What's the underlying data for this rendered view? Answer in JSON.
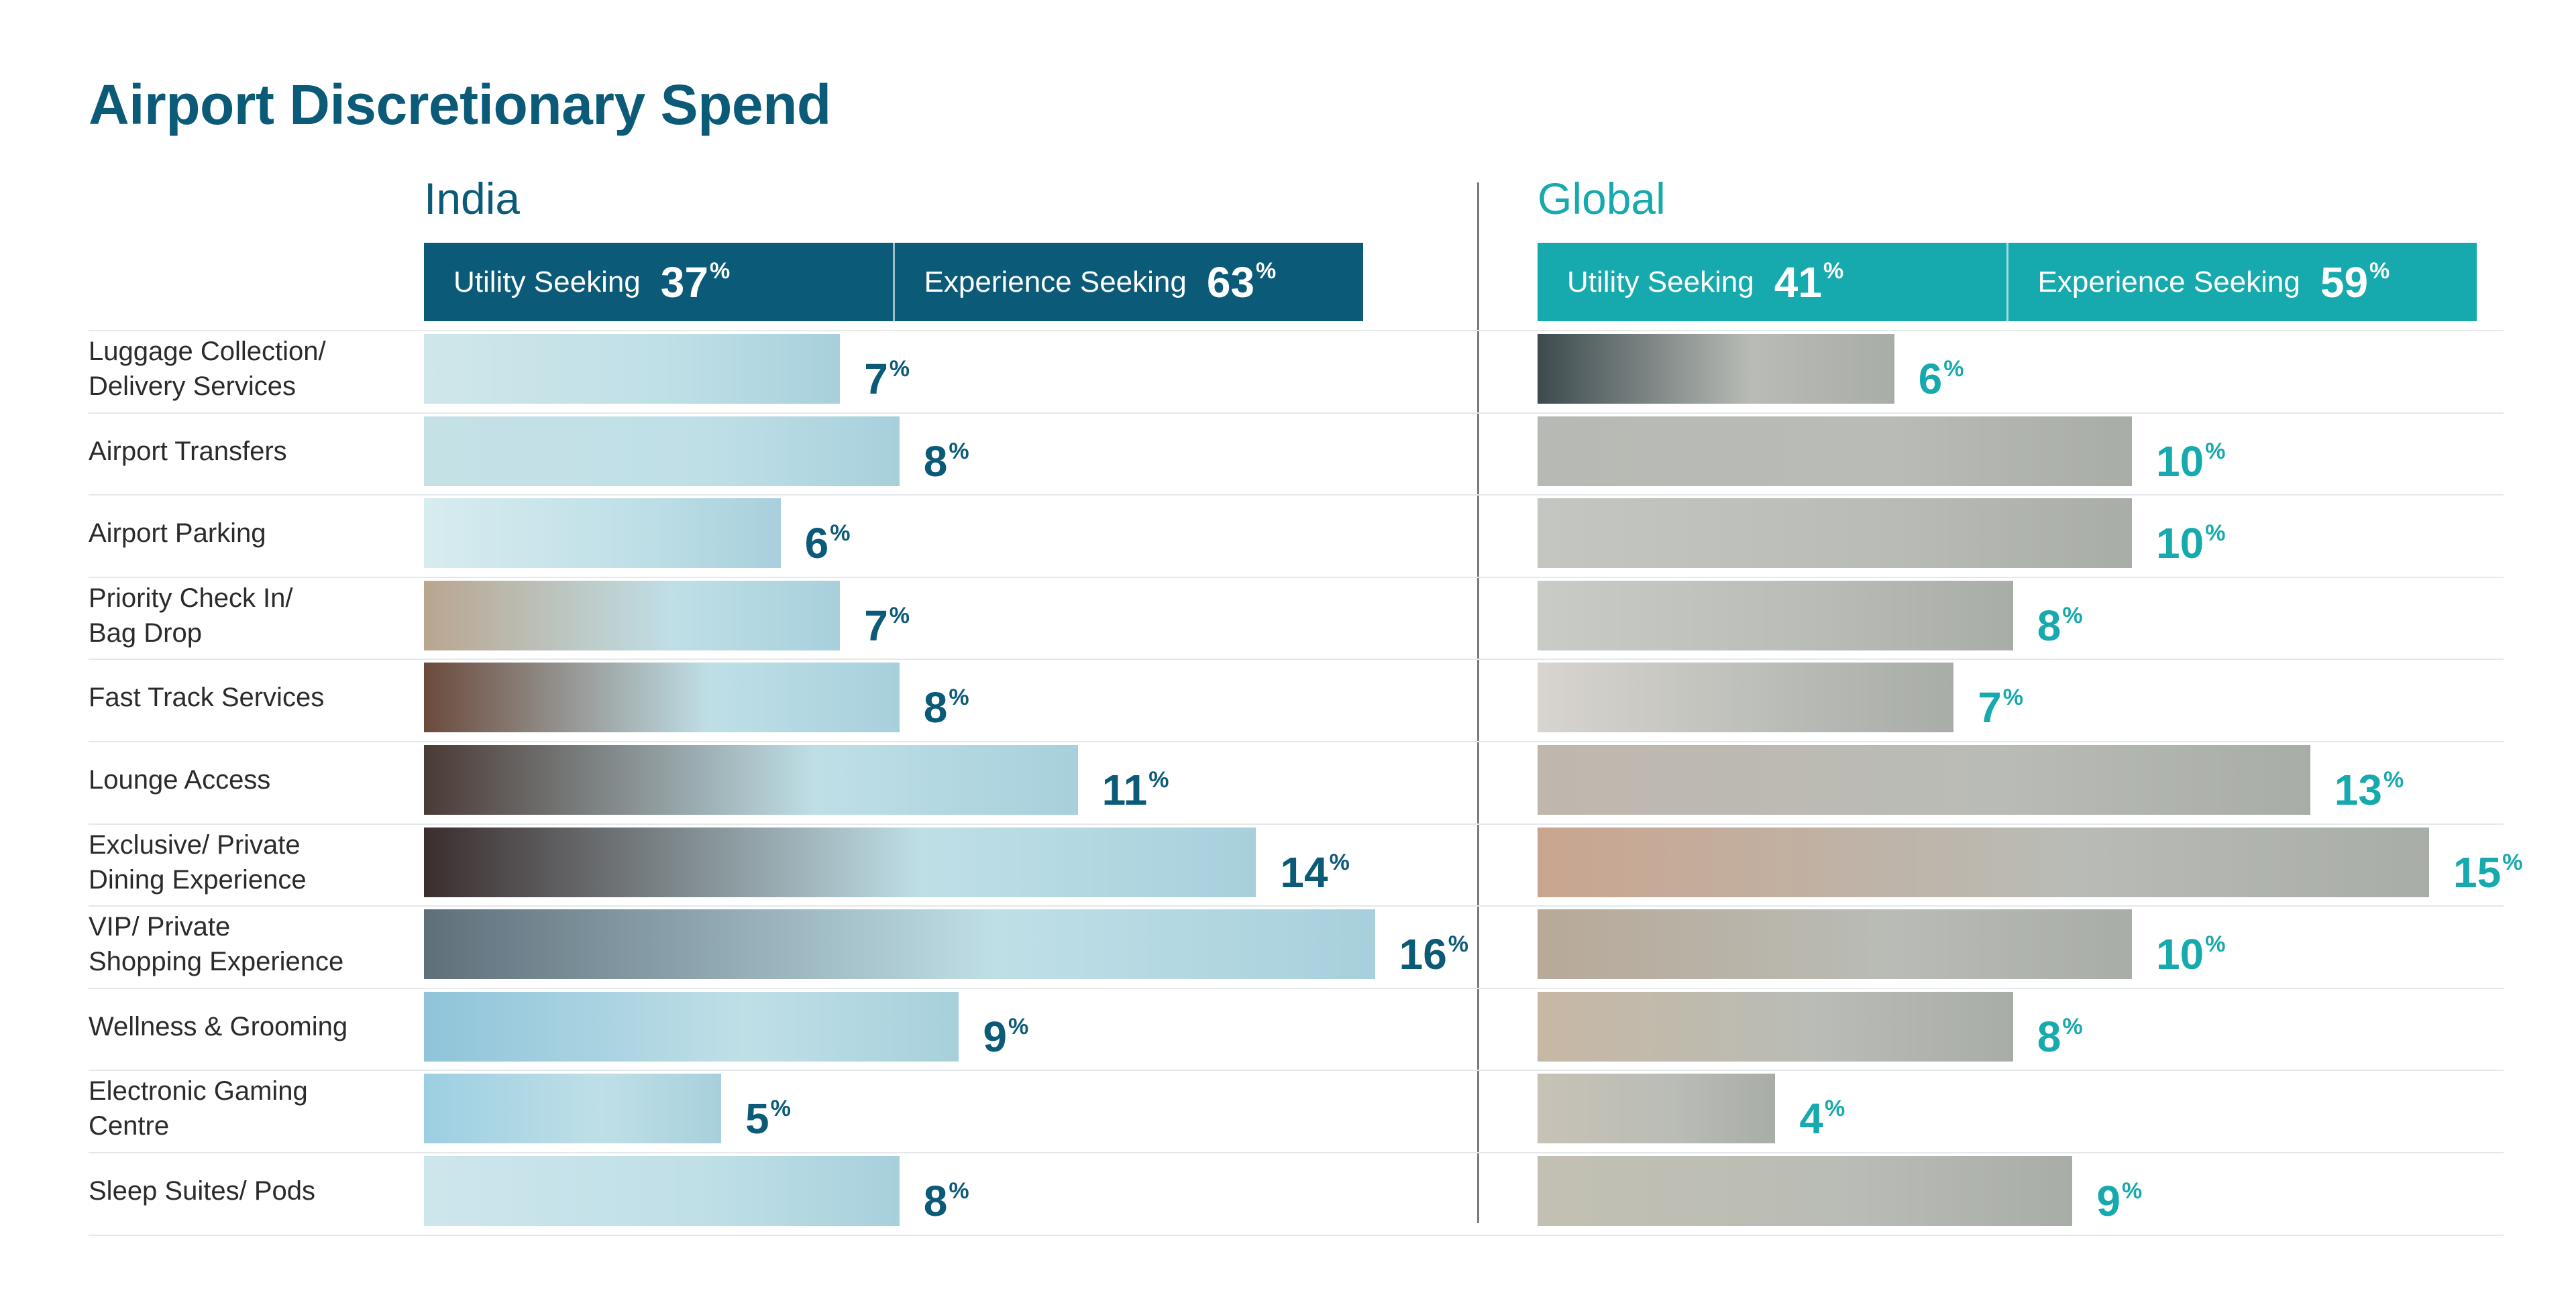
{
  "title": "Airport Discretionary Spend",
  "panels": {
    "india": {
      "name": "India",
      "utility_label": "Utility Seeking",
      "utility_value": "37",
      "experience_label": "Experience Seeking",
      "experience_value": "63"
    },
    "global": {
      "name": "Global",
      "utility_label": "Utility Seeking",
      "utility_value": "41",
      "experience_label": "Experience Seeking",
      "experience_value": "59"
    }
  },
  "colors": {
    "india": "#0b5a78",
    "global": "#16a9ad"
  },
  "percent_symbol": "%",
  "chart_data": {
    "type": "bar",
    "orientation": "horizontal",
    "title": "Airport Discretionary Spend",
    "categories": [
      "Luggage Collection/\nDelivery Services",
      "Airport Transfers",
      "Airport Parking",
      "Priority Check In/\nBag Drop",
      "Fast Track Services",
      "Lounge Access",
      "Exclusive/ Private\nDining Experience",
      "VIP/ Private\nShopping Experience",
      "Wellness & Grooming",
      "Electronic Gaming\nCentre",
      "Sleep Suites/ Pods"
    ],
    "series": [
      {
        "name": "India",
        "values": [
          7,
          8,
          6,
          7,
          8,
          11,
          14,
          16,
          9,
          5,
          8
        ]
      },
      {
        "name": "Global",
        "values": [
          6,
          10,
          10,
          8,
          7,
          13,
          15,
          10,
          8,
          4,
          9
        ]
      }
    ],
    "unit": "%",
    "xlim": [
      0,
      16
    ]
  }
}
